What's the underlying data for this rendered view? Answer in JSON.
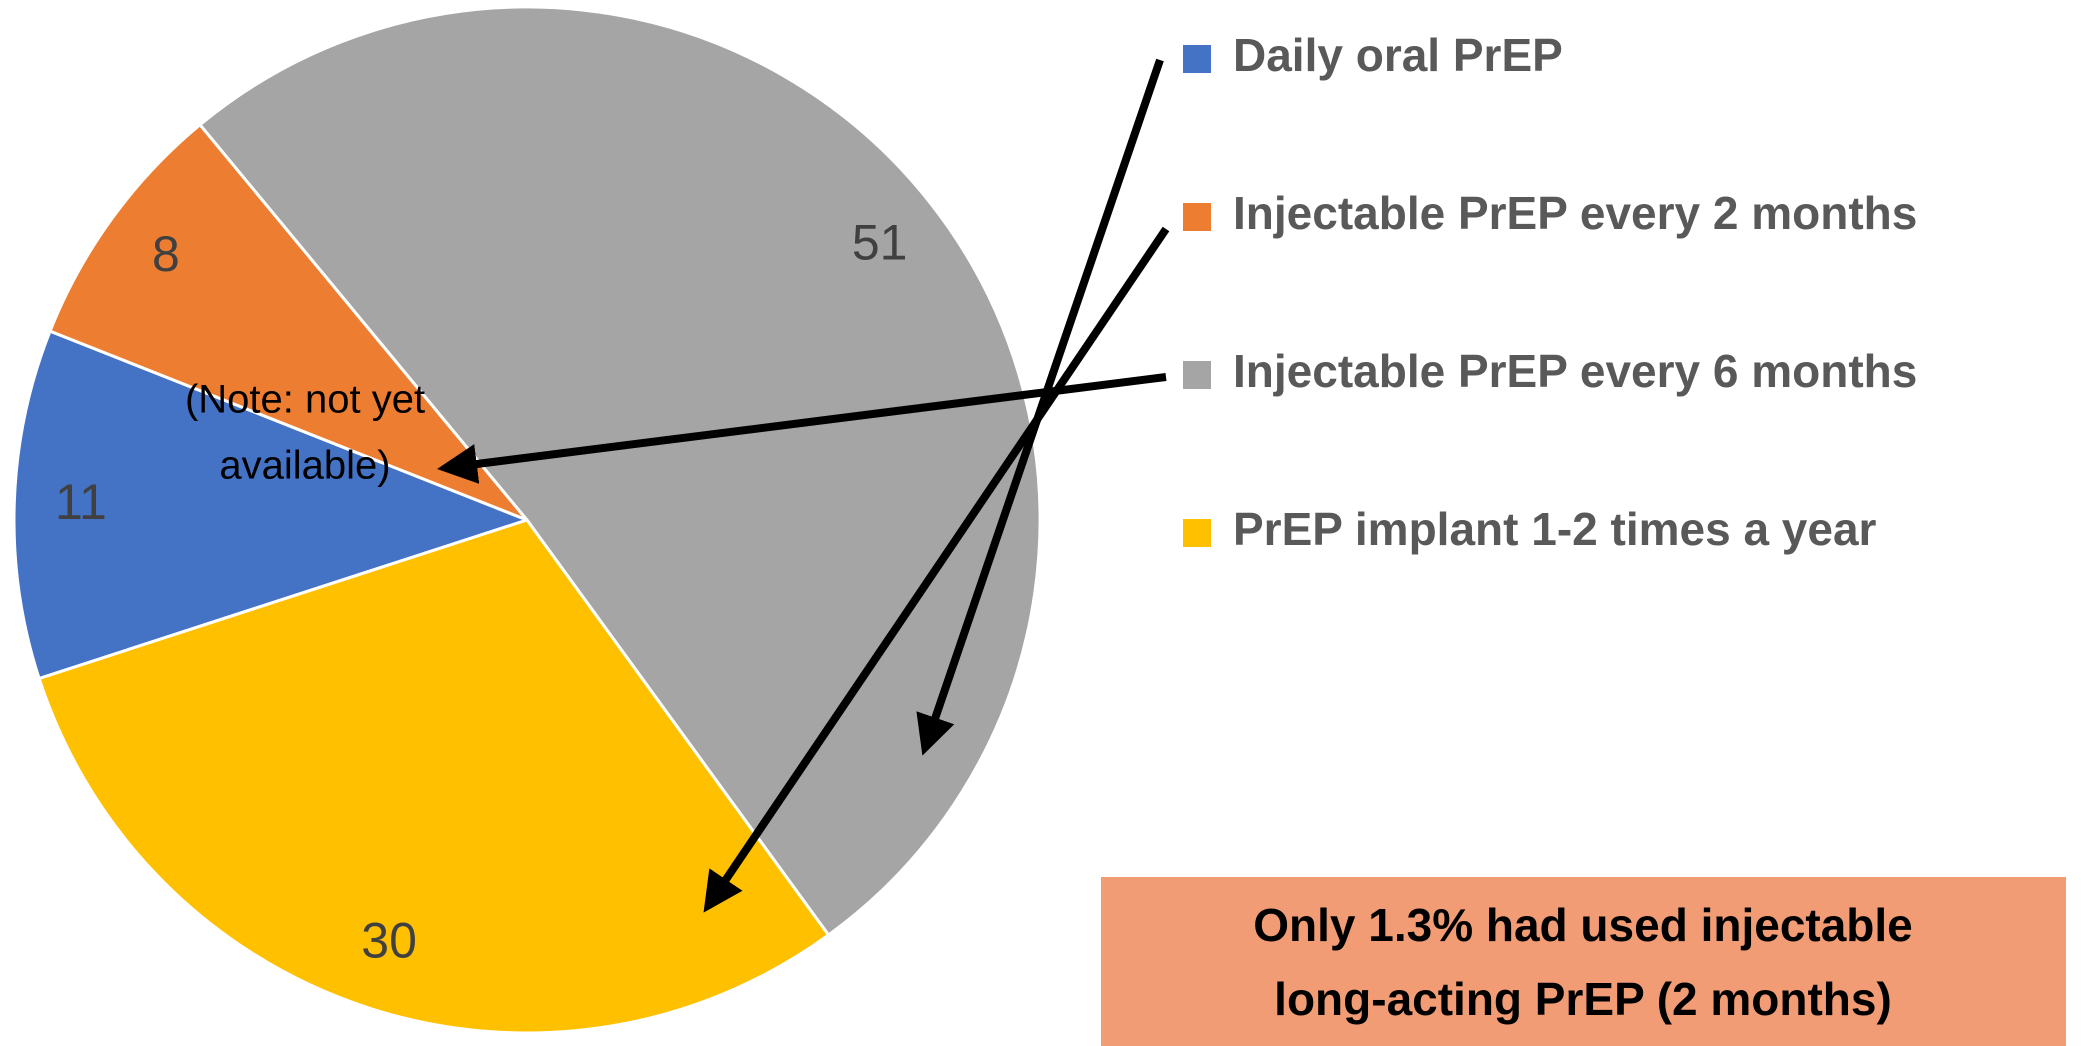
{
  "chart_data": {
    "type": "pie",
    "categories": [
      "Daily oral PrEP",
      "Injectable PrEP every 2 months",
      "Injectable PrEP every 6 months",
      "PrEP implant 1-2 times a year"
    ],
    "values": [
      11,
      8,
      51,
      30
    ],
    "colors": [
      "#4472c4",
      "#ed7d31",
      "#a5a5a5",
      "#ffc000"
    ],
    "note": [
      "(Note: not yet",
      "available)"
    ],
    "callout": [
      "Only 1.3% had used injectable",
      "long-acting PrEP (2 months)"
    ]
  }
}
